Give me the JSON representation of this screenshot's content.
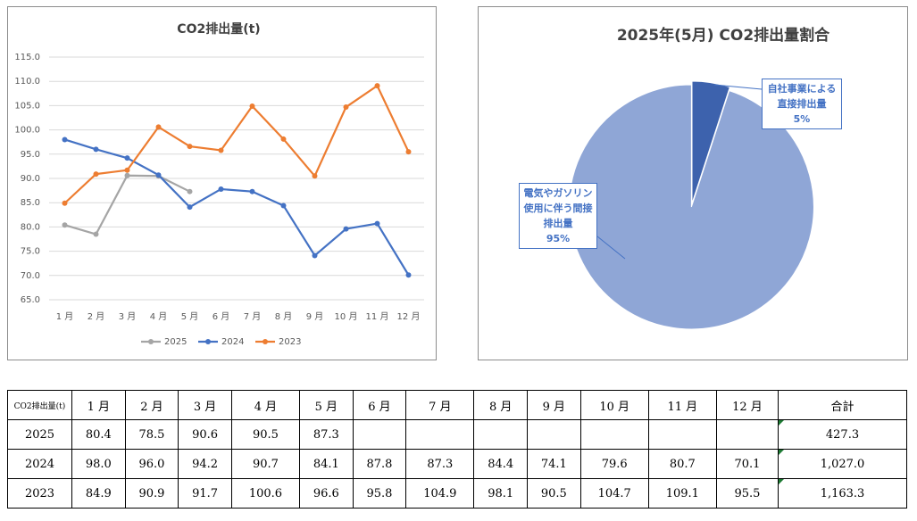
{
  "chart_data": [
    {
      "type": "line",
      "title": "CO2排出量(t)",
      "categories": [
        "1 月",
        "2 月",
        "3 月",
        "4 月",
        "5 月",
        "6 月",
        "7 月",
        "8 月",
        "9 月",
        "10 月",
        "11 月",
        "12 月"
      ],
      "series": [
        {
          "name": "2025",
          "color": "#a5a5a5",
          "values": [
            80.4,
            78.5,
            90.6,
            90.5,
            87.3,
            null,
            null,
            null,
            null,
            null,
            null,
            null
          ]
        },
        {
          "name": "2024",
          "color": "#4472c4",
          "values": [
            98.0,
            96.0,
            94.2,
            90.7,
            84.1,
            87.8,
            87.3,
            84.4,
            74.1,
            79.6,
            80.7,
            70.1
          ]
        },
        {
          "name": "2023",
          "color": "#ed7d31",
          "values": [
            84.9,
            90.9,
            91.7,
            100.6,
            96.6,
            95.8,
            104.9,
            98.1,
            90.5,
            104.7,
            109.1,
            95.5
          ]
        }
      ],
      "ylim": [
        65,
        115
      ],
      "yticks": [
        {
          "value": 65,
          "label": "65.0"
        },
        {
          "value": 70,
          "label": "70.0"
        },
        {
          "value": 75,
          "label": "75.0"
        },
        {
          "value": 80,
          "label": "80.0"
        },
        {
          "value": 85,
          "label": "85.0"
        },
        {
          "value": 90,
          "label": "90.0"
        },
        {
          "value": 95,
          "label": "95.0"
        },
        {
          "value": 100,
          "label": "100.0"
        },
        {
          "value": 105,
          "label": "105.0"
        },
        {
          "value": 110,
          "label": "110.0"
        },
        {
          "value": 115,
          "label": "115.0"
        }
      ],
      "grid": true,
      "legend": "bottom"
    },
    {
      "type": "pie",
      "title": "2025年(5月) CO2排出量割合",
      "categories": [
        "自社事業による直接排出量",
        "電気やガソリン使用に伴う間接排出量"
      ],
      "values": [
        5,
        95
      ],
      "value_labels": [
        "5%",
        "95%"
      ],
      "colors": [
        "#3d62ad",
        "#8fa6d6"
      ]
    }
  ],
  "table": {
    "header": [
      "CO2排出量(t)",
      "1 月",
      "2 月",
      "3 月",
      "4 月",
      "5 月",
      "6 月",
      "7 月",
      "8 月",
      "9 月",
      "10 月",
      "11 月",
      "12 月",
      "合計"
    ],
    "rows": [
      [
        "2025",
        "80.4",
        "78.5",
        "90.6",
        "90.5",
        "87.3",
        null,
        null,
        null,
        null,
        null,
        null,
        null,
        "427.3"
      ],
      [
        "2024",
        "98.0",
        "96.0",
        "94.2",
        "90.7",
        "84.1",
        "87.8",
        "87.3",
        "84.4",
        "74.1",
        "79.6",
        "80.7",
        "70.1",
        "1,027.0"
      ],
      [
        "2023",
        "84.9",
        "90.9",
        "91.7",
        "100.6",
        "96.6",
        "95.8",
        "104.9",
        "98.1",
        "90.5",
        "104.7",
        "109.1",
        "95.5",
        "1,163.3"
      ]
    ]
  }
}
